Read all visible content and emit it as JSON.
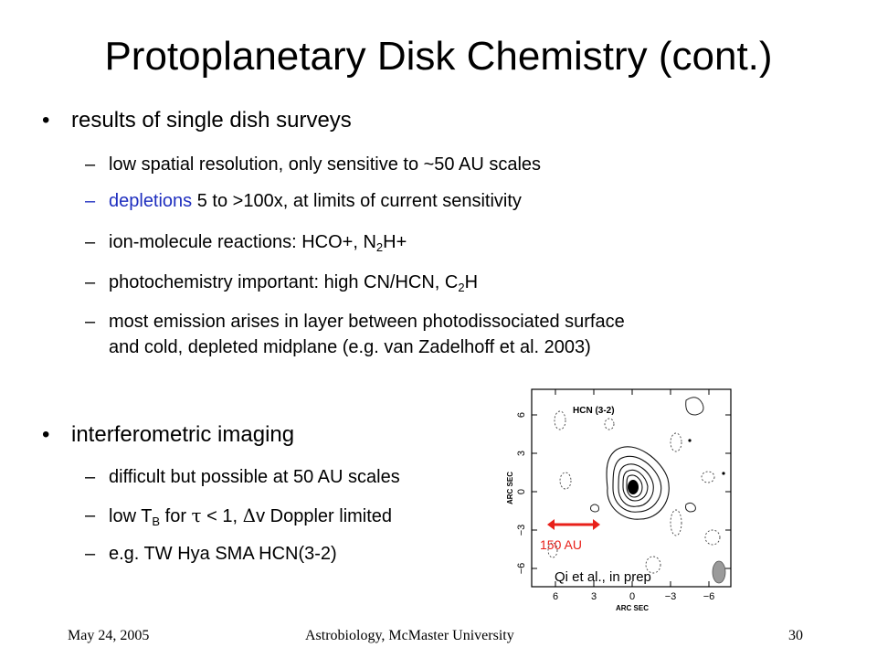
{
  "slide": {
    "title": "Protoplanetary Disk Chemistry (cont.)",
    "bullets": [
      {
        "label": "results of single dish surveys"
      },
      {
        "label": "interferometric imaging"
      }
    ],
    "single_dish": {
      "item1": "low spatial resolution, only sensitive to ~50 AU scales",
      "item2_highlight": "depletions",
      "item2_rest": " 5 to >100x, at limits of current sensitivity",
      "item3_a": "ion-molecule reactions: HCO+, N",
      "item3_sub": "2",
      "item3_b": "H+",
      "item4_a": "photochemistry important: high CN/HCN, C",
      "item4_sub": "2",
      "item4_b": "H",
      "item5_line1": "most emission arises in layer between photodissociated surface",
      "item5_line2": "and cold, depleted midplane (e.g. van Zadelhoff et al. 2003)"
    },
    "interferometric": {
      "item1": "difficult but possible at 50 AU scales",
      "item2_a": "low T",
      "item2_sub": "B",
      "item2_b": " for ",
      "item2_tau": "τ",
      "item2_c": " < 1, ",
      "item2_delta": "Δ",
      "item2_d": "v Doppler limited",
      "item3": "e.g. TW Hya  SMA HCN(3-2)"
    },
    "bullet_glyph": "•",
    "dash_glyph": "–",
    "accent_color": "#1f2fbf",
    "arrow_color": "#e8201a"
  },
  "figure": {
    "panel_label": "HCN (3-2)",
    "y_axis_label": "ARC SEC",
    "x_axis_label": "ARC SEC",
    "y_ticks": [
      "6",
      "3",
      "0",
      "−3",
      "−6"
    ],
    "x_ticks": [
      "6",
      "3",
      "0",
      "−3",
      "−6"
    ],
    "scale_label": "150 AU",
    "credit": "Qi et al., in prep"
  },
  "footer": {
    "date": "May 24, 2005",
    "venue": "Astrobiology, McMaster University",
    "page": "30"
  }
}
